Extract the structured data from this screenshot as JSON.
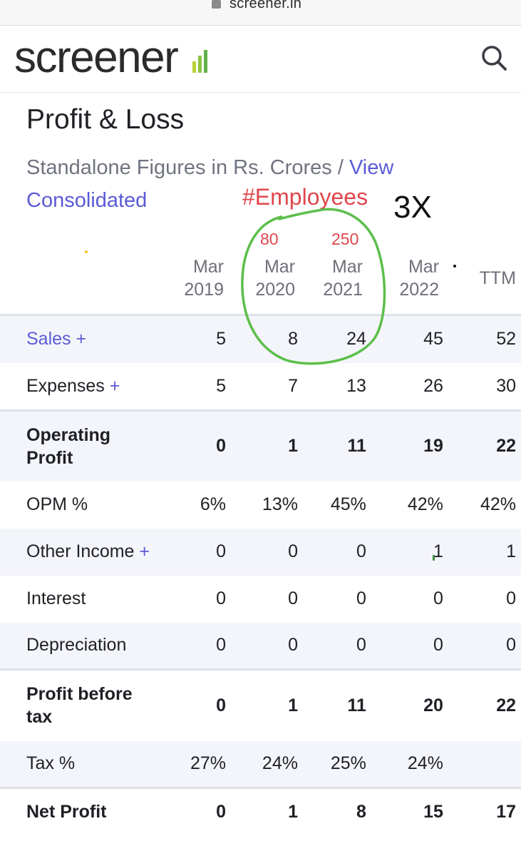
{
  "browser": {
    "url": "screener.in"
  },
  "header": {
    "logo": "screener"
  },
  "page": {
    "title": "Profit & Loss",
    "subtitle_prefix": "Standalone Figures in Rs. Crores / ",
    "subtitle_link_1": "View",
    "subtitle_link_2": "Consolidated"
  },
  "annotations": {
    "employees_label": "#Employees",
    "multiplier": "3X",
    "employees_2020": "80",
    "employees_2021": "250",
    "circle_color": "#5cbf4a"
  },
  "columns": [
    {
      "line1": "Mar",
      "line2": "2019"
    },
    {
      "line1": "Mar",
      "line2": "2020"
    },
    {
      "line1": "Mar",
      "line2": "2021"
    },
    {
      "line1": "Mar",
      "line2": "2022"
    },
    {
      "line1": "",
      "line2": "TTM"
    }
  ],
  "rows": [
    {
      "label": "Sales",
      "plus": "+",
      "values": [
        "5",
        "8",
        "24",
        "45",
        "52"
      ]
    },
    {
      "label": "Expenses",
      "plus": "+",
      "values": [
        "5",
        "7",
        "13",
        "26",
        "30"
      ]
    },
    {
      "label": "Operating Profit",
      "values": [
        "0",
        "1",
        "11",
        "19",
        "22"
      ]
    },
    {
      "label": "OPM %",
      "values": [
        "6%",
        "13%",
        "45%",
        "42%",
        "42%"
      ]
    },
    {
      "label": "Other Income",
      "plus": "+",
      "values": [
        "0",
        "0",
        "0",
        "1",
        "1"
      ]
    },
    {
      "label": "Interest",
      "values": [
        "0",
        "0",
        "0",
        "0",
        "0"
      ]
    },
    {
      "label": "Depreciation",
      "values": [
        "0",
        "0",
        "0",
        "0",
        "0"
      ]
    },
    {
      "label": "Profit before tax",
      "values": [
        "0",
        "1",
        "11",
        "20",
        "22"
      ]
    },
    {
      "label": "Tax %",
      "values": [
        "27%",
        "24%",
        "25%",
        "24%",
        ""
      ]
    },
    {
      "label": "Net Profit",
      "values": [
        "0",
        "1",
        "8",
        "15",
        "17"
      ]
    }
  ],
  "colors": {
    "accent": "#5b5bd6",
    "annotation_red": "#e0474c",
    "row_shade": "#f4f5fa"
  }
}
